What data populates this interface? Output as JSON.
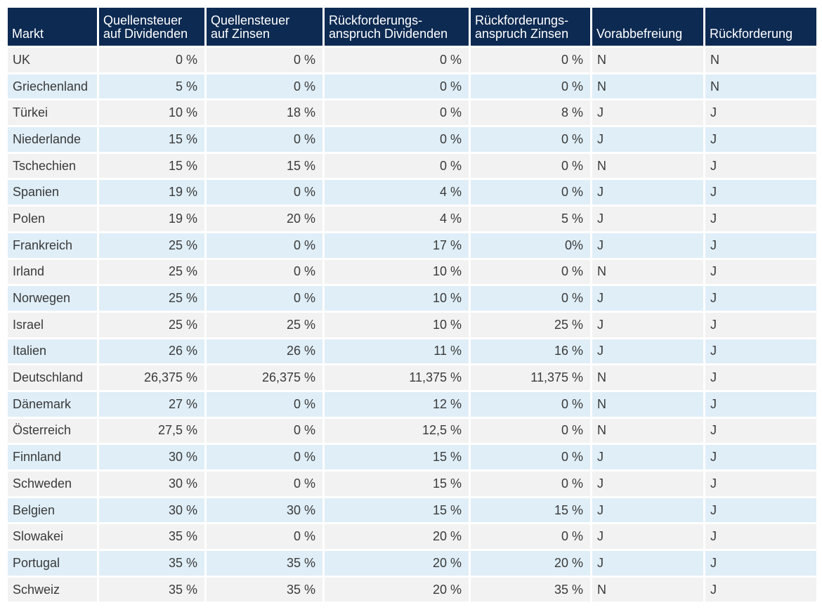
{
  "table": {
    "columns": [
      "Markt",
      "Quellensteuer auf Dividenden",
      "Quellensteuer auf Zinsen",
      "Rückforderungs- anspruch Dividenden",
      "Rückforderungs- anspruch Zinsen",
      "Vorabbefreiung",
      "Rückforderung"
    ],
    "header_lines": [
      [
        "Markt"
      ],
      [
        "Quellensteuer",
        "auf Dividenden"
      ],
      [
        "Quellensteuer",
        "auf Zinsen"
      ],
      [
        "Rückforderungs-",
        "anspruch Dividenden"
      ],
      [
        "Rückforderungs-",
        "anspruch Zinsen"
      ],
      [
        "Vorabbefreiung"
      ],
      [
        "Rückforderung"
      ]
    ],
    "rows": [
      [
        "UK",
        "0 %",
        "0 %",
        "0 %",
        "0 %",
        "N",
        "N"
      ],
      [
        "Griechenland",
        "5 %",
        "0 %",
        "0 %",
        "0 %",
        "N",
        "N"
      ],
      [
        "Türkei",
        "10 %",
        "18 %",
        "0 %",
        "8 %",
        "J",
        "J"
      ],
      [
        "Niederlande",
        "15 %",
        "0 %",
        "0 %",
        "0 %",
        "J",
        "J"
      ],
      [
        "Tschechien",
        "15 %",
        "15 %",
        "0 %",
        "0 %",
        "N",
        "J"
      ],
      [
        "Spanien",
        "19 %",
        "0 %",
        "4 %",
        "0 %",
        "J",
        "J"
      ],
      [
        "Polen",
        "19 %",
        "20 %",
        "4 %",
        "5 %",
        "J",
        "J"
      ],
      [
        "Frankreich",
        "25 %",
        "0 %",
        "17 %",
        "0%",
        "J",
        "J"
      ],
      [
        "Irland",
        "25 %",
        "0 %",
        "10 %",
        "0 %",
        "N",
        "J"
      ],
      [
        "Norwegen",
        "25 %",
        "0 %",
        "10 %",
        "0 %",
        "J",
        "J"
      ],
      [
        "Israel",
        "25 %",
        "25 %",
        "10 %",
        "25 %",
        "J",
        "J"
      ],
      [
        "Italien",
        "26 %",
        "26 %",
        "11 %",
        "16 %",
        "J",
        "J"
      ],
      [
        "Deutschland",
        "26,375 %",
        "26,375 %",
        "11,375 %",
        "11,375 %",
        "N",
        "J"
      ],
      [
        "Dänemark",
        "27 %",
        "0 %",
        "12 %",
        "0 %",
        "N",
        "J"
      ],
      [
        "Österreich",
        "27,5 %",
        "0 %",
        "12,5 %",
        "0 %",
        "N",
        "J"
      ],
      [
        "Finnland",
        "30 %",
        "0 %",
        "15 %",
        "0 %",
        "J",
        "J"
      ],
      [
        "Schweden",
        "30 %",
        "0 %",
        "15 %",
        "0 %",
        "J",
        "J"
      ],
      [
        "Belgien",
        "30 %",
        "30 %",
        "15 %",
        "15 %",
        "J",
        "J"
      ],
      [
        "Slowakei",
        "35 %",
        "0 %",
        "20 %",
        "0 %",
        "J",
        "J"
      ],
      [
        "Portugal",
        "35 %",
        "35 %",
        "20 %",
        "20 %",
        "J",
        "J"
      ],
      [
        "Schweiz",
        "35 %",
        "35 %",
        "20 %",
        "35 %",
        "N",
        "J"
      ]
    ]
  },
  "colors": {
    "header_bg": "#0d2a52",
    "header_text": "#ffffff",
    "row_odd": "#f2f2f2",
    "row_even": "#dfeef7",
    "cell_text": "#3a3a3a"
  }
}
